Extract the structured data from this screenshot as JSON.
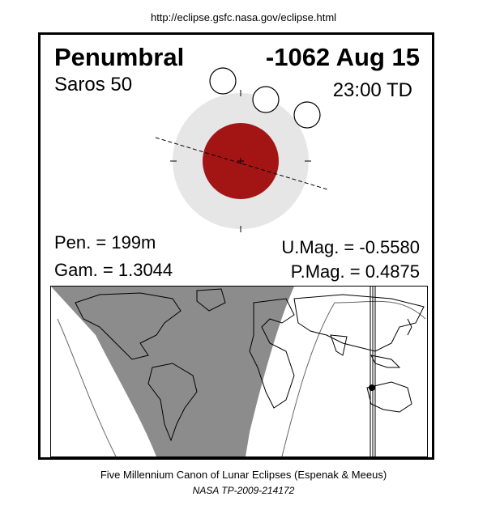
{
  "header": {
    "url": "http://eclipse.gsfc.nasa.gov/eclipse.html"
  },
  "eclipse": {
    "type": "Penumbral",
    "date": "-1062 Aug 15",
    "saros": "Saros  50",
    "time": "23:00 TD",
    "pen_duration": "Pen. = 199m",
    "gamma": "Gam. = 1.3044",
    "umbral_magnitude": "U.Mag. = -0.5580",
    "penumbral_magnitude": "P.Mag. = 0.4875"
  },
  "colors": {
    "umbra": "#a31515",
    "penumbra": "#e6e6e6",
    "night_region": "#8c8c8c",
    "moon_outline": "#000000"
  },
  "footer": {
    "caption": "Five Millennium Canon of Lunar Eclipses (Espenak & Meeus)",
    "reference": "NASA TP-2009-214172"
  }
}
